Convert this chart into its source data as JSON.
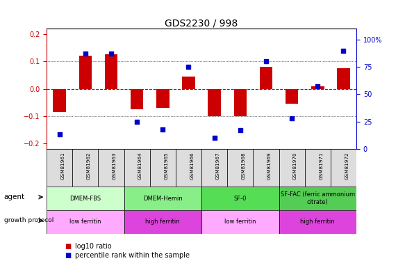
{
  "title": "GDS2230 / 998",
  "samples": [
    "GSM81961",
    "GSM81962",
    "GSM81963",
    "GSM81964",
    "GSM81965",
    "GSM81966",
    "GSM81967",
    "GSM81968",
    "GSM81969",
    "GSM81970",
    "GSM81971",
    "GSM81972"
  ],
  "log10_ratio": [
    -0.085,
    0.12,
    0.125,
    -0.075,
    -0.07,
    0.045,
    -0.1,
    -0.1,
    0.08,
    -0.055,
    0.01,
    0.075
  ],
  "percentile_rank": [
    13,
    87,
    87,
    25,
    18,
    75,
    10,
    17,
    80,
    28,
    57,
    90
  ],
  "agent_groups": [
    {
      "label": "DMEM-FBS",
      "start": 0,
      "end": 3,
      "color": "#ccffcc"
    },
    {
      "label": "DMEM-Hemin",
      "start": 3,
      "end": 6,
      "color": "#88ee88"
    },
    {
      "label": "SF-0",
      "start": 6,
      "end": 9,
      "color": "#55dd55"
    },
    {
      "label": "SF-FAC (ferric ammonium\ncitrate)",
      "start": 9,
      "end": 12,
      "color": "#55cc55"
    }
  ],
  "growth_groups": [
    {
      "label": "low ferritin",
      "start": 0,
      "end": 3,
      "color": "#ffaaff"
    },
    {
      "label": "high ferritin",
      "start": 3,
      "end": 6,
      "color": "#dd44dd"
    },
    {
      "label": "low ferritin",
      "start": 6,
      "end": 9,
      "color": "#ffaaff"
    },
    {
      "label": "high ferritin",
      "start": 9,
      "end": 12,
      "color": "#dd44dd"
    }
  ],
  "bar_color": "#cc0000",
  "dot_color": "#0000cc",
  "ylim_left": [
    -0.22,
    0.22
  ],
  "ylim_right": [
    0,
    110
  ],
  "yticks_left": [
    -0.2,
    -0.1,
    0.0,
    0.1,
    0.2
  ],
  "yticks_right": [
    0,
    25,
    50,
    75,
    100
  ],
  "hline_color": "#cc0000",
  "grid_color": "black",
  "tick_label_color_left": "#cc0000",
  "tick_label_color_right": "#0000cc",
  "sample_box_color": "#dddddd",
  "bar_width": 0.5
}
